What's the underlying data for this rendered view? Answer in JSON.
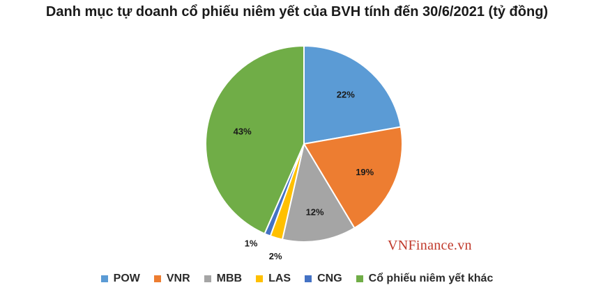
{
  "chart_data": {
    "type": "pie",
    "title": "Danh mục tự doanh cổ phiếu niêm yết của BVH tính đến 30/6/2021 (tỷ đồng)",
    "slices": [
      {
        "name": "POW",
        "value": 22,
        "label": "22%",
        "color": "#5b9bd5"
      },
      {
        "name": "VNR",
        "value": 19,
        "label": "19%",
        "color": "#ed7d31"
      },
      {
        "name": "MBB",
        "value": 12,
        "label": "12%",
        "color": "#a5a5a5"
      },
      {
        "name": "LAS",
        "value": 2,
        "label": "2%",
        "color": "#ffc000"
      },
      {
        "name": "CNG",
        "value": 1,
        "label": "1%",
        "color": "#4472c4"
      },
      {
        "name": "Cổ phiếu niêm yết khác",
        "value": 43,
        "label": "43%",
        "color": "#70ad47"
      }
    ],
    "legend_position": "bottom"
  },
  "watermark": "VNFinance.vn"
}
